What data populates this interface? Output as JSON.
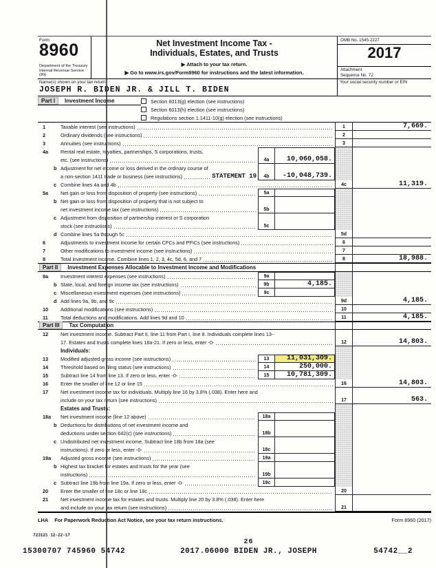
{
  "header": {
    "form_word": "Form",
    "form_number": "8960",
    "agency_line1": "Department of the Treasury",
    "agency_line2": "Internal Revenue Service (99)",
    "title_line1": "Net Investment Income Tax -",
    "title_line2": "Individuals, Estates, and Trusts",
    "attach_note": "▶ Attach to your tax return.",
    "goto_note": "▶ Go to www.irs.gov/Form8960 for instructions and the latest information.",
    "omb": "OMB No. 1545-2227",
    "year": "2017",
    "attachment_label": "Attachment",
    "sequence": "Sequence No. 72",
    "name_label": "Name(s) shown on your tax return",
    "name_value": "JOSEPH R. BIDEN JR. & JILL T. BIDEN",
    "ssn_label": "Your social security number or EIN",
    "ssn_value": ""
  },
  "part1": {
    "label": "Part I",
    "title": "Investment Income",
    "checkboxes": [
      {
        "label": "Section 6013(g) election (see instructions)",
        "checked": false
      },
      {
        "label": "Section 6013(h) election (see instructions)",
        "checked": false
      },
      {
        "label": "Regulations section 1.1411-10(g) election (see instructions)",
        "checked": false
      }
    ]
  },
  "rows": [
    {
      "n": "1",
      "t": "Taxable interest (see instructions)",
      "dots": 1,
      "rn": "1",
      "ra": "7,669.",
      "ru": 1
    },
    {
      "n": "2",
      "t": "Ordinary dividends (see instructions)",
      "dots": 1,
      "rn": "2",
      "ra": "",
      "ru": 1
    },
    {
      "n": "3",
      "t": "Annuities (see instructions)",
      "dots": 1,
      "rn": "3",
      "ra": "",
      "ru": 1
    },
    {
      "n": "4a",
      "t": "Rental real estate, royalties, partnerships, S corporations, trusts,",
      "bx": "open-top",
      "rg": 1
    },
    {
      "i": 1,
      "t": "etc. (see instructions)",
      "dots": 1,
      "bx": "box-nt",
      "box": {
        "n": "4a",
        "v": "10,060,058."
      },
      "rg": 1
    },
    {
      "n": "b",
      "i": 1,
      "t": "Adjustment for net income or loss derived in the ordinary course of",
      "bx": "open",
      "rg": 1
    },
    {
      "i": 1,
      "t": "a non-section 1411 trade or business (see instructions)",
      "dots": 1,
      "stmt": "STATEMENT 19",
      "bx": "box-nt",
      "box": {
        "n": "4b",
        "v": "-10,048,739."
      },
      "rg": 1
    },
    {
      "n": "c",
      "i": 1,
      "t": "Combine lines 4a and 4b",
      "dots": 1,
      "rn": "4c",
      "ra": "11,319.",
      "ru": 1
    },
    {
      "n": "5a",
      "t": "Net gain or loss from disposition of property (see instructions)",
      "dots": 1,
      "bx": "box",
      "box": {
        "n": "5a",
        "v": ""
      },
      "rg": 1
    },
    {
      "n": "b",
      "i": 1,
      "t": "Net gain or loss from disposition of property that is not subject to",
      "bx": "open",
      "rg": 1
    },
    {
      "i": 1,
      "t": "net investment income tax (see instructions)",
      "dots": 1,
      "bx": "box-nt",
      "box": {
        "n": "5b",
        "v": ""
      },
      "rg": 1
    },
    {
      "n": "c",
      "i": 1,
      "t": "Adjustment from disposition of partnership interest or S corporation",
      "bx": "open",
      "rg": 1
    },
    {
      "i": 1,
      "t": "stock (see instructions)",
      "dots": 1,
      "bx": "box-nt",
      "box": {
        "n": "5c",
        "v": ""
      },
      "rg": 1
    },
    {
      "n": "d",
      "i": 1,
      "t": "Combine lines 5a through 5c",
      "dots": 1,
      "rn": "5d",
      "ra": "",
      "ru": 1
    },
    {
      "n": "6",
      "t": "Adjustments to investment income for certain CFCs and PFICs (see instructions)",
      "dots": 1,
      "rn": "6",
      "ra": "",
      "ru": 1
    },
    {
      "n": "7",
      "t": "Other modifications to investment income (see instructions)",
      "dots": 1,
      "rn": "7",
      "ra": "",
      "ru": 1
    },
    {
      "n": "8",
      "t": "Total investment income. Combine lines 1, 2, 3, 4c, 5d, 6, and 7",
      "dots": 1,
      "rn": "8",
      "ra": "18,988.",
      "ru": 1
    },
    {
      "part": 1,
      "label": "Part II",
      "title": "Investment Expenses Allocable to Investment Income and Modifications"
    },
    {
      "n": "9a",
      "t": "Investment interest expenses (see instructions)",
      "dots": 1,
      "bx": "box",
      "box": {
        "n": "9a",
        "v": ""
      },
      "rg": 1
    },
    {
      "n": "b",
      "i": 1,
      "t": "State, local, and foreign income tax (see instructions)",
      "dots": 1,
      "bx": "box-nt",
      "box": {
        "n": "9b",
        "v": "4,185."
      },
      "rg": 1
    },
    {
      "n": "c",
      "i": 1,
      "t": "Miscellaneous investment expenses (see instructions)",
      "dots": 1,
      "bx": "box-nt",
      "box": {
        "n": "9c",
        "v": ""
      },
      "rg": 1
    },
    {
      "n": "d",
      "i": 1,
      "t": "Add lines 9a, 9b, and 9c",
      "dots": 1,
      "rn": "9d",
      "ra": "4,185.",
      "ru": 1
    },
    {
      "n": "10",
      "t": "Additional modifications (see instructions)",
      "dots": 1,
      "rn": "10",
      "ra": "",
      "ru": 1
    },
    {
      "n": "11",
      "t": "Total deductions and modifications. Add lines 9d and 10",
      "dots": 1,
      "rn": "11",
      "ra": "4,185.",
      "ru": 1
    },
    {
      "part": 1,
      "label": "Part III",
      "title": "Tax Computation"
    },
    {
      "n": "12",
      "t": "Net investment income. Subtract Part II, line 11 from Part I, line 8. Individuals complete lines 13-"
    },
    {
      "i": 1,
      "t": "17. Estates and trusts complete lines 18a-21. If zero or less, enter -0-",
      "dots": 1,
      "rn": "12",
      "ra": "14,803.",
      "ru": 1
    },
    {
      "b": 1,
      "t": "Individuals:",
      "rg": 1
    },
    {
      "n": "13",
      "t": "Modified adjusted gross income (see instructions)",
      "dots": 1,
      "bx": "box",
      "box": {
        "n": "13",
        "v": "11,031,309.",
        "hl": 1
      },
      "rg": 1
    },
    {
      "n": "14",
      "t": "Threshold based on filing status (see instructions)",
      "dots": 1,
      "bx": "box-nt",
      "box": {
        "n": "14",
        "v": "250,000."
      },
      "rg": 1
    },
    {
      "n": "15",
      "t": "Subtract line 14 from line 13. If zero or less, enter -0-",
      "dots": 1,
      "bx": "box-nt",
      "box": {
        "n": "15",
        "v": "10,781,309."
      },
      "rg": 1
    },
    {
      "n": "16",
      "t": "Enter the smaller of line 12 or line 15",
      "dots": 1,
      "rn": "16",
      "ra": "14,803.",
      "ru": 1
    },
    {
      "n": "17",
      "t": "Net investment income tax for individuals. Multiply line 16 by 3.8% (.038). Enter here and"
    },
    {
      "i": 1,
      "t": "include on your tax return (see instructions)",
      "dots": 1,
      "rn": "17",
      "ra": "563.",
      "ru": 1
    },
    {
      "b": 1,
      "t": "Estates and Trusts:",
      "rg": 1
    },
    {
      "n": "18a",
      "t": "Net investment income (line 12 above)",
      "dots": 1,
      "bx": "box",
      "box": {
        "n": "18a",
        "v": ""
      },
      "rg": 1
    },
    {
      "n": "b",
      "i": 1,
      "t": "Deductions for distributions of net investment income and",
      "bx": "open",
      "rg": 1
    },
    {
      "i": 1,
      "t": "deductions under section 642(c) (see instructions)",
      "dots": 1,
      "bx": "box-nt",
      "box": {
        "n": "18b",
        "v": ""
      },
      "rg": 1
    },
    {
      "n": "c",
      "i": 1,
      "t": "Undistributed net investment income. Subtract line 18b from 18a (see",
      "bx": "open",
      "rg": 1
    },
    {
      "i": 1,
      "t": "instructions). If zero or less, enter -0-",
      "dots": 1,
      "bx": "box-nt",
      "box": {
        "n": "18c",
        "v": ""
      },
      "rg": 1
    },
    {
      "n": "19a",
      "t": "Adjusted gross income (see instructions)",
      "dots": 1,
      "bx": "box-nt",
      "box": {
        "n": "19a",
        "v": ""
      },
      "rg": 1
    },
    {
      "n": "b",
      "i": 1,
      "t": "Highest tax bracket for estates and trusts for the year (see",
      "bx": "open",
      "rg": 1
    },
    {
      "i": 1,
      "t": "instructions)",
      "dots": 1,
      "bx": "box-nt",
      "box": {
        "n": "19b",
        "v": ""
      },
      "rg": 1
    },
    {
      "n": "c",
      "i": 1,
      "t": "Subtract line 19b from line 19a. If zero or less, enter -0-",
      "dots": 1,
      "bx": "box-nt",
      "box": {
        "n": "19c",
        "v": ""
      },
      "rg": 1
    },
    {
      "n": "20",
      "t": "Enter the smaller of line 18c or line 19c",
      "dots": 1,
      "rn": "20",
      "ra": "",
      "ru": 1
    },
    {
      "n": "21",
      "t": "Net investment income tax for estates and trusts. Multiply line 20 by 3.8% (.038). Enter here"
    },
    {
      "i": 1,
      "t": "and include on your tax return (see instructions)",
      "dots": 1,
      "rn": "21",
      "ra": "",
      "ru": 1
    }
  ],
  "footer": {
    "lha": "LHA",
    "notice": "For Paperwork Reduction Act Notice, see your tax return instructions.",
    "form_ref": "Form 8960 (2017)",
    "plate_code": "723121 12-22-17",
    "page_number": "26",
    "bottom_left": "15300707 745960 54742",
    "bottom_center": "2017.06000 BIDEN JR., JOSEPH",
    "bottom_right": "54742__2"
  },
  "colors": {
    "highlight_yellow": "#f3ea86",
    "shaded_column_gray": "#e7e7e7"
  }
}
